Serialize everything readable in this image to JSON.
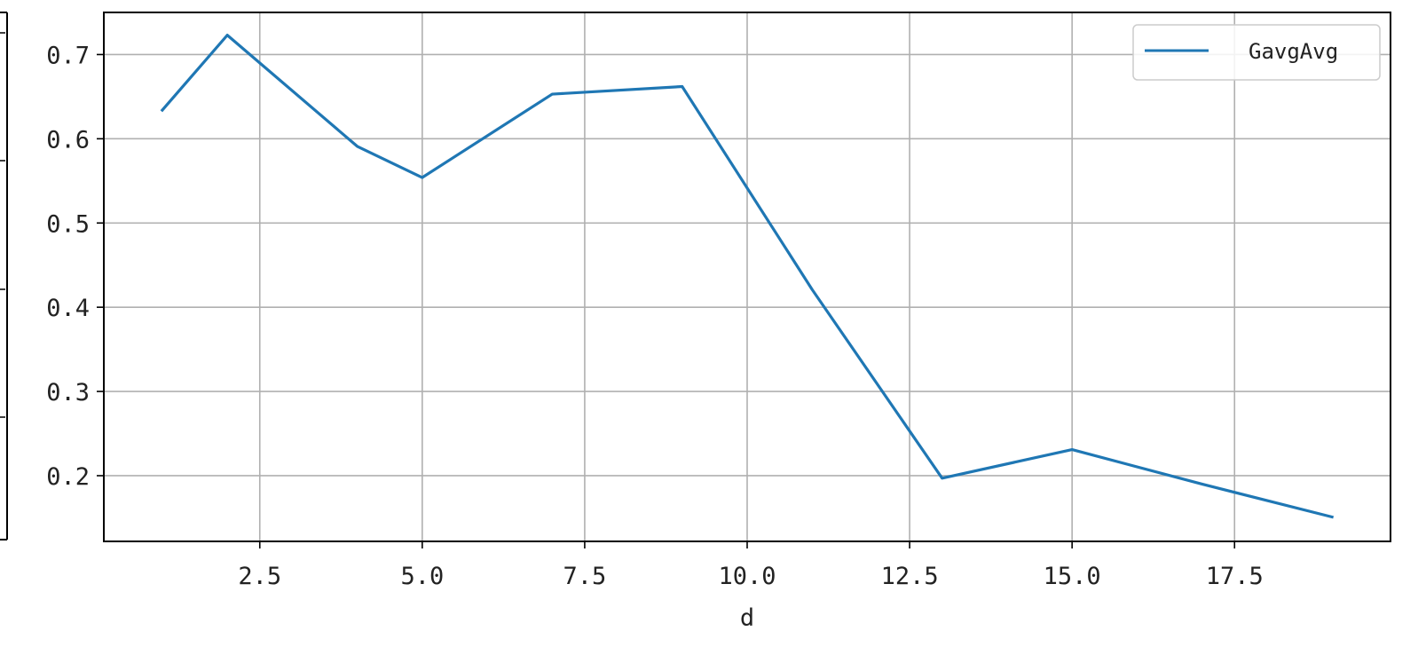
{
  "chart_data": {
    "type": "line",
    "title": "",
    "xlabel": "d",
    "ylabel": "",
    "xlim": [
      0.1,
      19.9
    ],
    "ylim": [
      0.122,
      0.75
    ],
    "x_ticks": [
      2.5,
      5.0,
      7.5,
      10.0,
      12.5,
      15.0,
      17.5
    ],
    "x_tick_labels": [
      "2.5",
      "5.0",
      "7.5",
      "10.0",
      "12.5",
      "15.0",
      "17.5"
    ],
    "y_ticks": [
      0.2,
      0.3,
      0.4,
      0.5,
      0.6,
      0.7
    ],
    "y_tick_labels": [
      "0.2",
      "0.3",
      "0.4",
      "0.5",
      "0.6",
      "0.7"
    ],
    "grid": true,
    "legend": {
      "position": "top-right",
      "entries": [
        "GavgAvg"
      ]
    },
    "series": [
      {
        "name": "GavgAvg",
        "color": "#1f77b4",
        "x": [
          1,
          2,
          4,
          5,
          7,
          9,
          11,
          13,
          15,
          17,
          19
        ],
        "y": [
          0.634,
          0.723,
          0.591,
          0.554,
          0.653,
          0.662,
          0.421,
          0.197,
          0.231,
          0.19,
          0.151
        ]
      }
    ]
  }
}
